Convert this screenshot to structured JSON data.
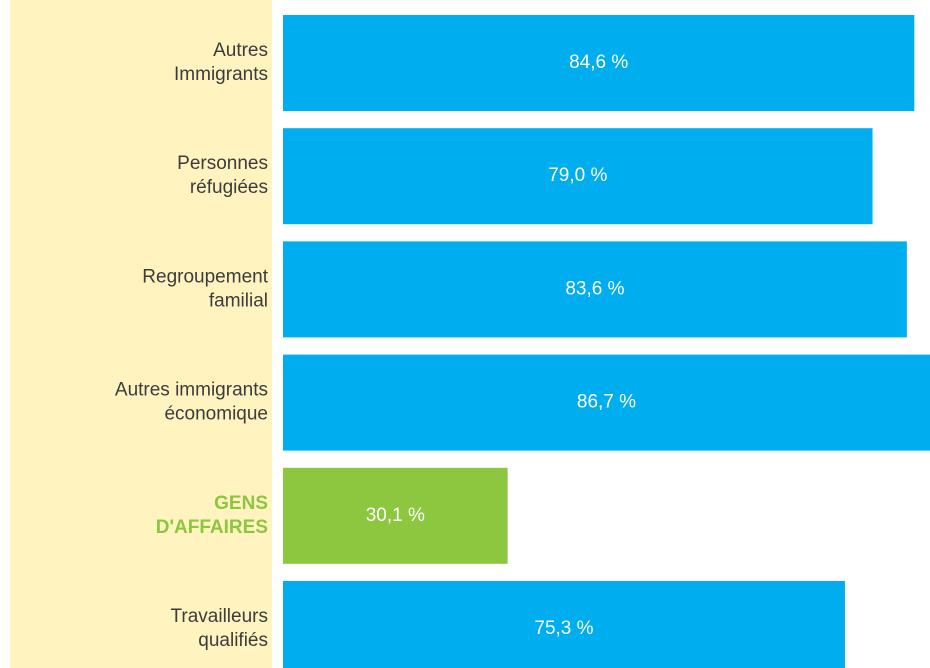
{
  "chart_data": {
    "type": "bar",
    "orientation": "horizontal",
    "categories": [
      "Autres\nImmigrants",
      "Personnes\nréfugiées",
      "Regroupement\nfamilial",
      "Autres immigrants\néconomique",
      "GENS\nD'AFFAIRES",
      "Travailleurs\nqualifiés"
    ],
    "values": [
      84.6,
      79.0,
      83.6,
      86.7,
      30.1,
      75.3
    ],
    "value_labels": [
      "84,6 %",
      "79,0 %",
      "83,6 %",
      "86,7 %",
      "30,1 %",
      "75,3 %"
    ],
    "color": "#00adef",
    "highlighted": 4,
    "highlight_color": "#8dc63f",
    "xlim": [
      0,
      86.7
    ]
  }
}
